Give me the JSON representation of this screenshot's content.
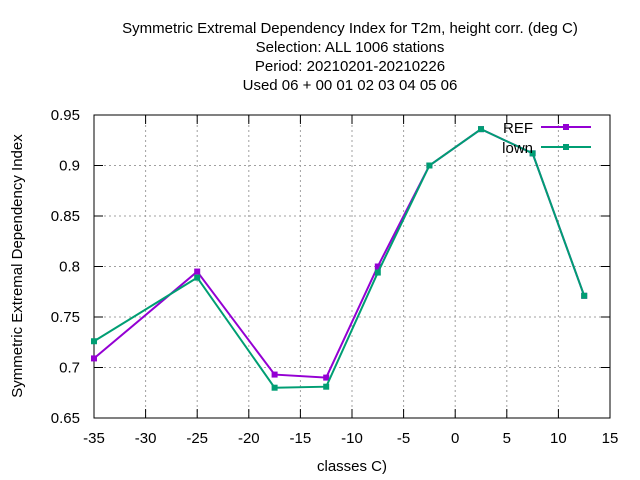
{
  "chart_data": {
    "type": "line",
    "title_lines": [
      "Symmetric Extremal Dependency Index  for T2m, height corr. (deg C)",
      "Selection: ALL   1006 stations",
      "Period: 20210201-20210226",
      "Used  06  + 00 01 02 03 04 05 06"
    ],
    "xlabel": "classes C)",
    "ylabel": "Symmetric Extremal Dependency Index",
    "xlim": [
      -35,
      15
    ],
    "ylim": [
      0.65,
      0.95
    ],
    "xticks": [
      -35,
      -30,
      -25,
      -20,
      -15,
      -10,
      -5,
      0,
      5,
      10,
      15
    ],
    "yticks": [
      0.65,
      0.7,
      0.75,
      0.8,
      0.85,
      0.9,
      0.95
    ],
    "grid": true,
    "legend_position": "top-right",
    "series": [
      {
        "name": "REF",
        "color": "#9400d3",
        "points": [
          [
            -35,
            0.709
          ],
          [
            -25,
            0.795
          ],
          [
            -17.5,
            0.693
          ],
          [
            -12.5,
            0.69
          ],
          [
            -7.5,
            0.8
          ],
          [
            -2.5,
            0.9
          ],
          [
            2.5,
            0.936
          ],
          [
            7.5,
            0.912
          ],
          [
            12.5,
            0.771
          ]
        ]
      },
      {
        "name": "lown",
        "color": "#009e73",
        "points": [
          [
            -35,
            0.726
          ],
          [
            -25,
            0.789
          ],
          [
            -17.5,
            0.68
          ],
          [
            -12.5,
            0.681
          ],
          [
            -7.5,
            0.794
          ],
          [
            -2.5,
            0.9
          ],
          [
            2.5,
            0.936
          ],
          [
            7.5,
            0.912
          ],
          [
            12.5,
            0.771
          ]
        ]
      }
    ]
  }
}
